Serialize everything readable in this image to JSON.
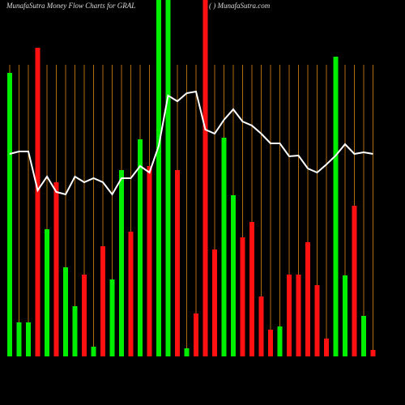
{
  "chart_data": {
    "type": "bar",
    "title": "MunafaSutra  Money Flow  Charts for GRAL",
    "subtitle": "( ) MunafaSutra.com",
    "ylim": [
      0,
      440
    ],
    "bar_values": [
      350,
      42,
      42,
      381,
      157,
      215,
      110,
      62,
      101,
      12,
      136,
      95,
      230,
      154,
      268,
      235,
      440,
      440,
      230,
      10,
      53,
      440,
      132,
      270,
      199,
      147,
      166,
      74,
      33,
      37,
      101,
      101,
      141,
      88,
      22,
      370,
      100,
      186,
      50,
      8
    ],
    "bar_colors": [
      "#00ee00",
      "#00ee00",
      "#00ee00",
      "#ff1111",
      "#00ee00",
      "#ff1111",
      "#00ee00",
      "#00ee00",
      "#ff1111",
      "#00ee00",
      "#ff1111",
      "#00ee00",
      "#00ee00",
      "#ff1111",
      "#00ee00",
      "#ff1111",
      "#00ee00",
      "#00ee00",
      "#ff1111",
      "#00ee00",
      "#ff1111",
      "#ff1111",
      "#ff1111",
      "#00ee00",
      "#00ee00",
      "#ff1111",
      "#ff1111",
      "#ff1111",
      "#ff1111",
      "#00ee00",
      "#ff1111",
      "#ff1111",
      "#ff1111",
      "#ff1111",
      "#ff1111",
      "#00ee00",
      "#00ee00",
      "#ff1111",
      "#00ee00",
      "#ff1111"
    ],
    "line_values": [
      250,
      253,
      253,
      205,
      222,
      203,
      200,
      222,
      215,
      220,
      215,
      200,
      220,
      220,
      235,
      227,
      260,
      322,
      315,
      325,
      327,
      280,
      275,
      292,
      305,
      290,
      285,
      275,
      263,
      263,
      247,
      248,
      232,
      227,
      237,
      248,
      262,
      250,
      252,
      250
    ],
    "line_color": "#ffffff",
    "grid_color": "#b06a10"
  }
}
